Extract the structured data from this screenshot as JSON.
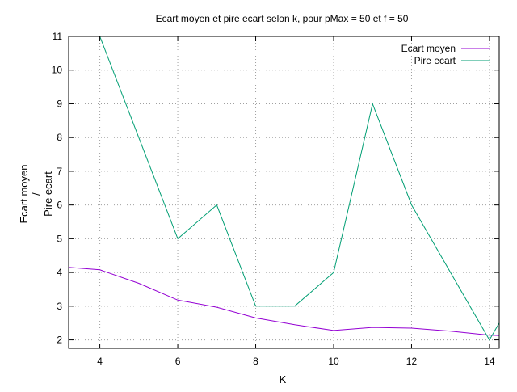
{
  "chart_data": {
    "type": "line",
    "title": "Ecart moyen et pire ecart selon k, pour pMax = 50 et f = 50",
    "xlabel": "K",
    "ylabel_lines": [
      "Ecart moyen",
      "/",
      "Pire ecart"
    ],
    "xlim": [
      3.2,
      14.25
    ],
    "ylim": [
      1.75,
      11
    ],
    "xticks": [
      4,
      6,
      8,
      10,
      12,
      14
    ],
    "yticks": [
      2,
      3,
      4,
      5,
      6,
      7,
      8,
      9,
      10,
      11
    ],
    "grid": true,
    "legend_position": "top-right",
    "series": [
      {
        "name": "Ecart moyen",
        "color": "#9400d3",
        "x": [
          3,
          4,
          5,
          6,
          7,
          8,
          9,
          10,
          11,
          12,
          13,
          14,
          15
        ],
        "y": [
          4.17,
          4.08,
          3.68,
          3.18,
          2.97,
          2.65,
          2.45,
          2.28,
          2.37,
          2.35,
          2.26,
          2.14,
          2.1
        ]
      },
      {
        "name": "Pire ecart",
        "color": "#009e73",
        "x": [
          3,
          4,
          5,
          6,
          7,
          8,
          9,
          10,
          11,
          12,
          13,
          14,
          15
        ],
        "y": [
          11,
          11,
          8,
          5,
          6,
          3,
          3,
          4,
          9,
          6,
          4,
          2,
          4
        ]
      }
    ]
  }
}
